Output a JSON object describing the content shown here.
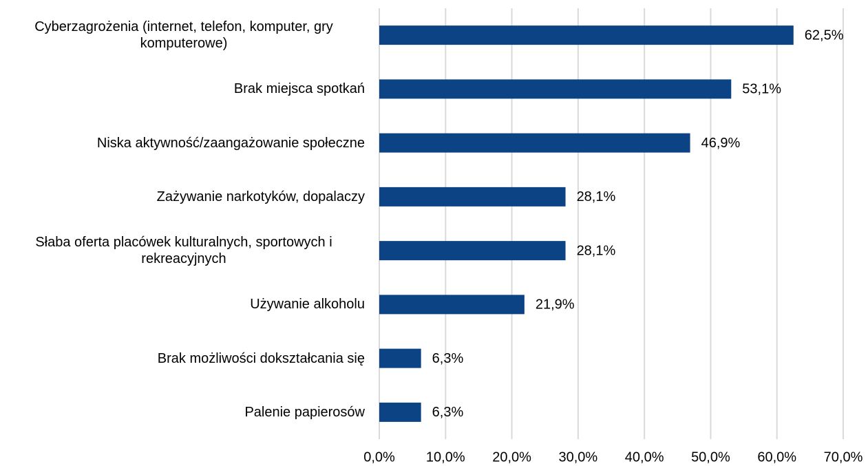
{
  "chart_data": {
    "type": "bar",
    "orientation": "horizontal",
    "categories": [
      "Cyberzagrożenia (internet, telefon, komputer, gry komputerowe)",
      "Brak miejsca spotkań",
      "Niska aktywność/zaangażowanie społeczne",
      "Zażywanie narkotyków, dopalaczy",
      "Słaba oferta placówek kulturalnych, sportowych i rekreacyjnych",
      "Używanie alkoholu",
      "Brak możliwości dokształcania się",
      "Palenie papierosów"
    ],
    "values": [
      62.5,
      53.1,
      46.9,
      28.1,
      28.1,
      21.9,
      6.3,
      6.3
    ],
    "value_labels": [
      "62,5%",
      "53,1%",
      "46,9%",
      "28,1%",
      "28,1%",
      "21,9%",
      "6,3%",
      "6,3%"
    ],
    "color": "#0b4384",
    "xlim": [
      0,
      70
    ],
    "xticks": [
      {
        "value": 0,
        "label": "0,0%"
      },
      {
        "value": 10,
        "label": "10,0%"
      },
      {
        "value": 20,
        "label": "20,0%"
      },
      {
        "value": 30,
        "label": "30,0%"
      },
      {
        "value": 40,
        "label": "40,0%"
      },
      {
        "value": 50,
        "label": "50,0%"
      },
      {
        "value": 60,
        "label": "60,0%"
      },
      {
        "value": 70,
        "label": "70,0%"
      }
    ],
    "grid": true
  }
}
